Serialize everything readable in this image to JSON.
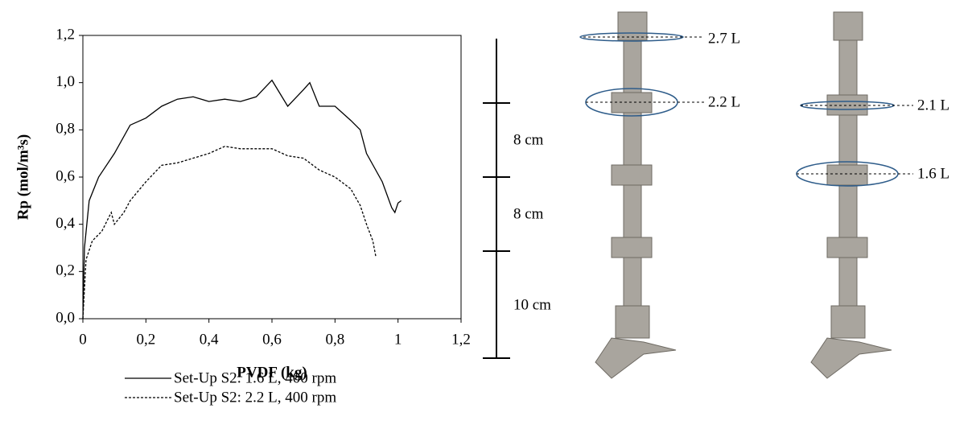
{
  "chart_data": {
    "type": "line",
    "x_label": "PVDF (kg)",
    "y_label": "Rp (mol/m³s)",
    "xlim": [
      0,
      1.2
    ],
    "ylim": [
      0,
      1.2
    ],
    "xticks": [
      0,
      {
        "value": 0.2,
        "label": "0,2"
      },
      {
        "value": 0.4,
        "label": "0,4"
      },
      {
        "value": 0.6,
        "label": "0,6"
      },
      {
        "value": 0.8,
        "label": "0,8"
      },
      1,
      {
        "value": 1.2,
        "label": "1,2"
      }
    ],
    "yticks": [
      {
        "value": 0,
        "label": "0,0"
      },
      {
        "value": 0.2,
        "label": "0,2"
      },
      {
        "value": 0.4,
        "label": "0,4"
      },
      {
        "value": 0.6,
        "label": "0,6"
      },
      {
        "value": 0.8,
        "label": "0,8"
      },
      {
        "value": 1,
        "label": "1,0"
      },
      {
        "value": 1.2,
        "label": "1,2"
      }
    ],
    "legend": "bottom",
    "series": [
      {
        "name": "Set-Up S2: 1.6 L, 400 rpm",
        "color": "#000000",
        "style": "solid",
        "x": [
          0,
          0.005,
          0.02,
          0.05,
          0.1,
          0.15,
          0.2,
          0.25,
          0.3,
          0.35,
          0.4,
          0.45,
          0.5,
          0.55,
          0.6,
          0.65,
          0.7,
          0.72,
          0.75,
          0.8,
          0.85,
          0.88,
          0.9,
          0.95,
          0.98,
          0.99,
          1.0,
          1.01
        ],
        "values": [
          0,
          0.3,
          0.5,
          0.6,
          0.7,
          0.82,
          0.85,
          0.9,
          0.93,
          0.94,
          0.92,
          0.93,
          0.92,
          0.94,
          1.01,
          0.9,
          0.97,
          1.0,
          0.9,
          0.9,
          0.84,
          0.8,
          0.7,
          0.58,
          0.47,
          0.45,
          0.49,
          0.5
        ]
      },
      {
        "name": "Set-Up S2: 2.2 L, 400 rpm",
        "color": "#000000",
        "style": "dashed",
        "x": [
          0,
          0.01,
          0.03,
          0.06,
          0.09,
          0.1,
          0.13,
          0.15,
          0.2,
          0.25,
          0.3,
          0.35,
          0.4,
          0.45,
          0.5,
          0.55,
          0.6,
          0.65,
          0.7,
          0.75,
          0.8,
          0.85,
          0.88,
          0.9,
          0.92,
          0.93
        ],
        "values": [
          0,
          0.25,
          0.33,
          0.37,
          0.45,
          0.4,
          0.45,
          0.5,
          0.58,
          0.65,
          0.66,
          0.68,
          0.7,
          0.73,
          0.72,
          0.72,
          0.72,
          0.69,
          0.68,
          0.63,
          0.6,
          0.55,
          0.48,
          0.4,
          0.33,
          0.26
        ]
      }
    ]
  },
  "scale_bar": {
    "segments": [
      "8 cm",
      "8 cm",
      "10 cm"
    ]
  },
  "impellers": [
    {
      "labels": [
        "2.7 L",
        "2.2 L"
      ]
    },
    {
      "labels": [
        "2.1 L",
        "1.6 L"
      ]
    }
  ]
}
